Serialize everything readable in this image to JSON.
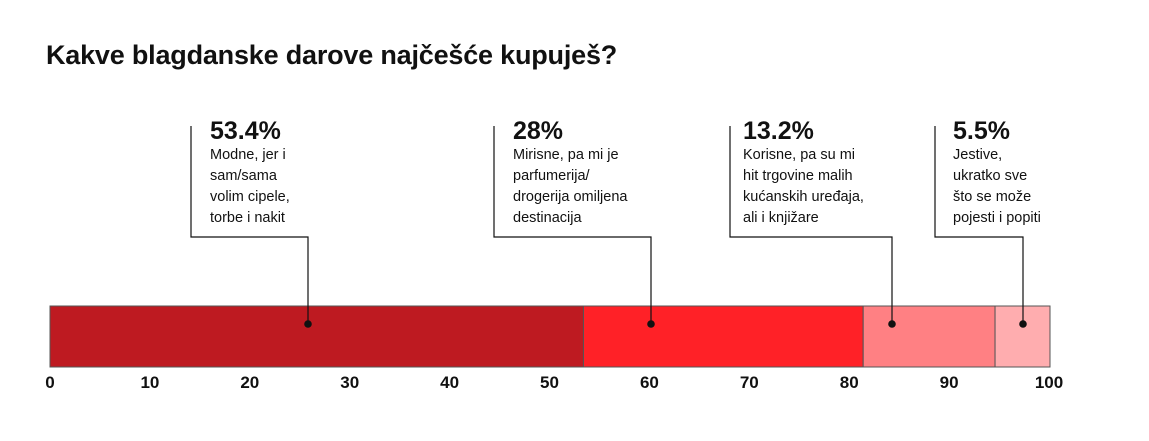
{
  "title": "Kakve blagdanske darove najčešće kupuješ?",
  "chart_data": {
    "type": "bar",
    "orientation": "horizontal-stacked",
    "title": "Kakve blagdanske darove najčešće kupuješ?",
    "xlim": [
      0,
      100
    ],
    "ticks": [
      0,
      10,
      20,
      30,
      40,
      50,
      60,
      70,
      80,
      90,
      100
    ],
    "grid": false,
    "segments": [
      {
        "value": 53.4,
        "pct_label": "53.4%",
        "lines": [
          "Modne, jer i",
          "sam/sama",
          "volim cipele,",
          "torbe i nakit"
        ],
        "color": "#be1a21"
      },
      {
        "value": 28,
        "pct_label": "28%",
        "lines": [
          "Mirisne, pa mi je",
          "parfumerija/",
          "drogerija omiljena",
          "destinacija"
        ],
        "color": "#ff2127"
      },
      {
        "value": 13.2,
        "pct_label": "13.2%",
        "lines": [
          "Korisne, pa su mi",
          "hit trgovine malih",
          "kućanskih uređaja,",
          "ali i knjižare"
        ],
        "color": "#ff8083"
      },
      {
        "value": 5.5,
        "pct_label": "5.5%",
        "lines": [
          "Jestive,",
          "ukratko sve",
          "što se može",
          "pojesti i popiti"
        ],
        "color": "#ffadaf"
      }
    ]
  }
}
